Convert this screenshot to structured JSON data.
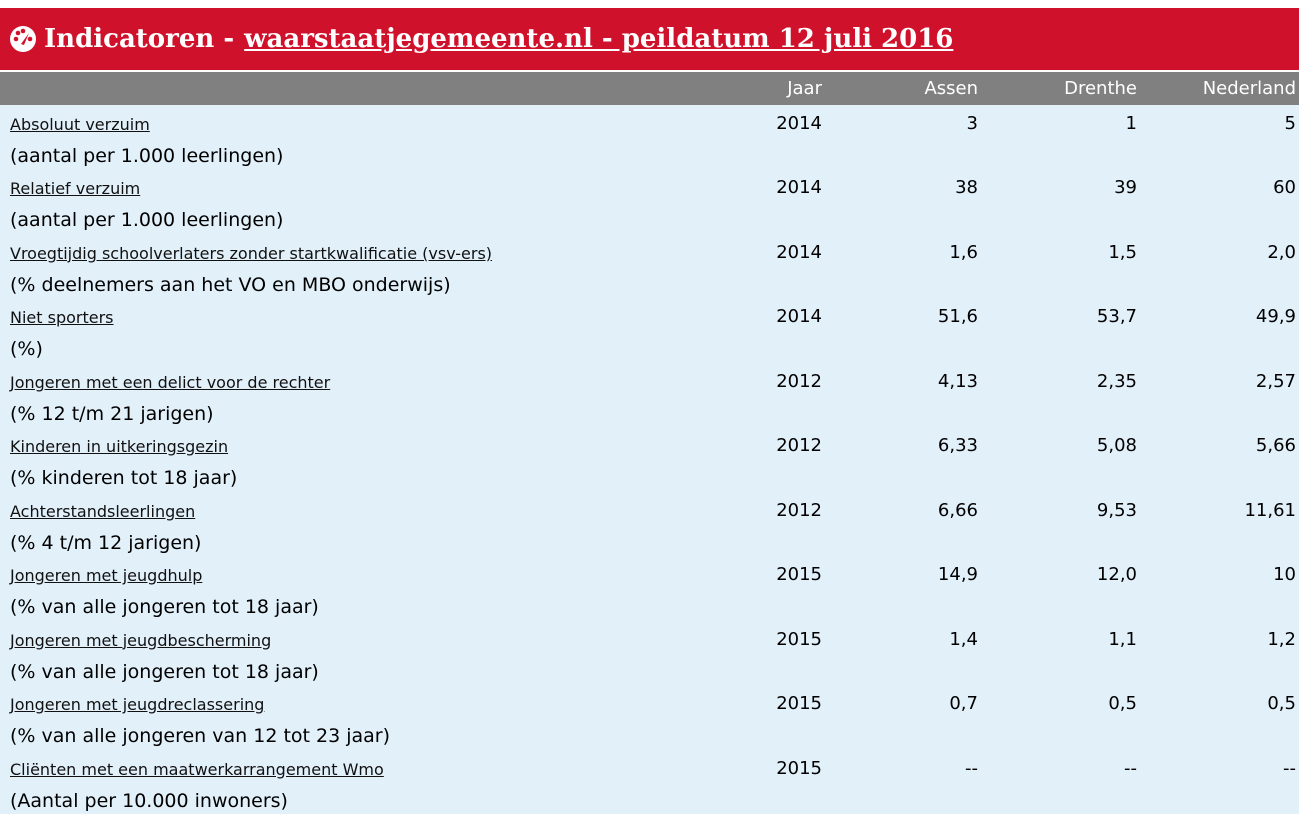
{
  "header": {
    "title": "Indicatoren -",
    "link": "waarstaatjegemeente.nl - peildatum 12 juli 2016"
  },
  "table": {
    "columns": [
      "Jaar",
      "Assen",
      "Drenthe",
      "Nederland"
    ],
    "rows": [
      {
        "name": "Absoluut verzuim",
        "unit": "(aantal per 1.000 leerlingen)",
        "cells": [
          "2014",
          "3",
          "1",
          "5"
        ]
      },
      {
        "name": "Relatief verzuim",
        "unit": "(aantal per 1.000 leerlingen)",
        "cells": [
          "2014",
          "38",
          "39",
          "60"
        ]
      },
      {
        "name": "Vroegtijdig schoolverlaters zonder startkwalificatie (vsv-ers)",
        "unit": "(% deelnemers aan het VO en MBO onderwijs)",
        "cells": [
          "2014",
          "1,6",
          "1,5",
          "2,0"
        ]
      },
      {
        "name": "Niet sporters",
        "unit": "(%)",
        "cells": [
          "2014",
          "51,6",
          "53,7",
          "49,9"
        ]
      },
      {
        "name": "Jongeren met een delict voor de rechter",
        "unit": "(% 12 t/m 21 jarigen)",
        "cells": [
          "2012",
          "4,13",
          "2,35",
          "2,57"
        ]
      },
      {
        "name": "Kinderen in uitkeringsgezin",
        "unit": "(% kinderen tot 18 jaar)",
        "cells": [
          "2012",
          "6,33",
          "5,08",
          "5,66"
        ]
      },
      {
        "name": "Achterstandsleerlingen",
        "unit": "(% 4 t/m 12 jarigen)",
        "cells": [
          "2012",
          "6,66",
          "9,53",
          "11,61"
        ]
      },
      {
        "name": "Jongeren met jeugdhulp",
        "unit": "(% van alle jongeren tot 18 jaar)",
        "cells": [
          "2015",
          "14,9",
          "12,0",
          "10"
        ]
      },
      {
        "name": "Jongeren met jeugdbescherming",
        "unit": "(% van alle jongeren tot 18 jaar)",
        "cells": [
          "2015",
          "1,4",
          "1,1",
          "1,2"
        ]
      },
      {
        "name": "Jongeren met jeugdreclassering",
        "unit": "(% van alle jongeren van 12 tot 23 jaar)",
        "cells": [
          "2015",
          "0,7",
          "0,5",
          "0,5"
        ]
      },
      {
        "name": "Cliënten met een maatwerkarrangement Wmo",
        "unit": "(Aantal per 10.000 inwoners)",
        "cells": [
          "2015",
          "--",
          "--",
          "--"
        ]
      }
    ]
  }
}
